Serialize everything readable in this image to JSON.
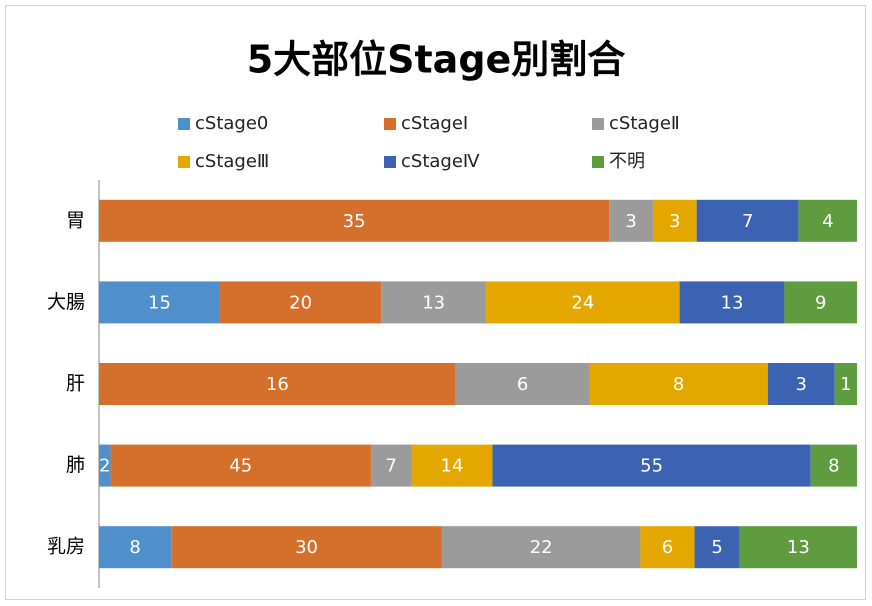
{
  "chart_data": {
    "type": "bar",
    "orientation": "horizontal",
    "stacked": "percent",
    "title": "5大部位Stage別割合",
    "categories": [
      "胃",
      "大腸",
      "肝",
      "肺",
      "乳房"
    ],
    "series": [
      {
        "name": "cStage0",
        "color": "#4f8fcb",
        "values": [
          0,
          15,
          0,
          2,
          8
        ]
      },
      {
        "name": "cStageⅠ",
        "color": "#d5702c",
        "values": [
          35,
          20,
          16,
          45,
          30
        ]
      },
      {
        "name": "cStageⅡ",
        "color": "#9b9b9b",
        "values": [
          3,
          13,
          6,
          7,
          22
        ]
      },
      {
        "name": "cStageⅢ",
        "color": "#e3a700",
        "values": [
          3,
          24,
          8,
          14,
          6
        ]
      },
      {
        "name": "cStageⅣ",
        "color": "#3b63b1",
        "values": [
          7,
          13,
          3,
          55,
          5
        ]
      },
      {
        "name": "不明",
        "color": "#5f9b3f",
        "values": [
          4,
          9,
          1,
          8,
          13
        ]
      }
    ],
    "legend": "top"
  }
}
